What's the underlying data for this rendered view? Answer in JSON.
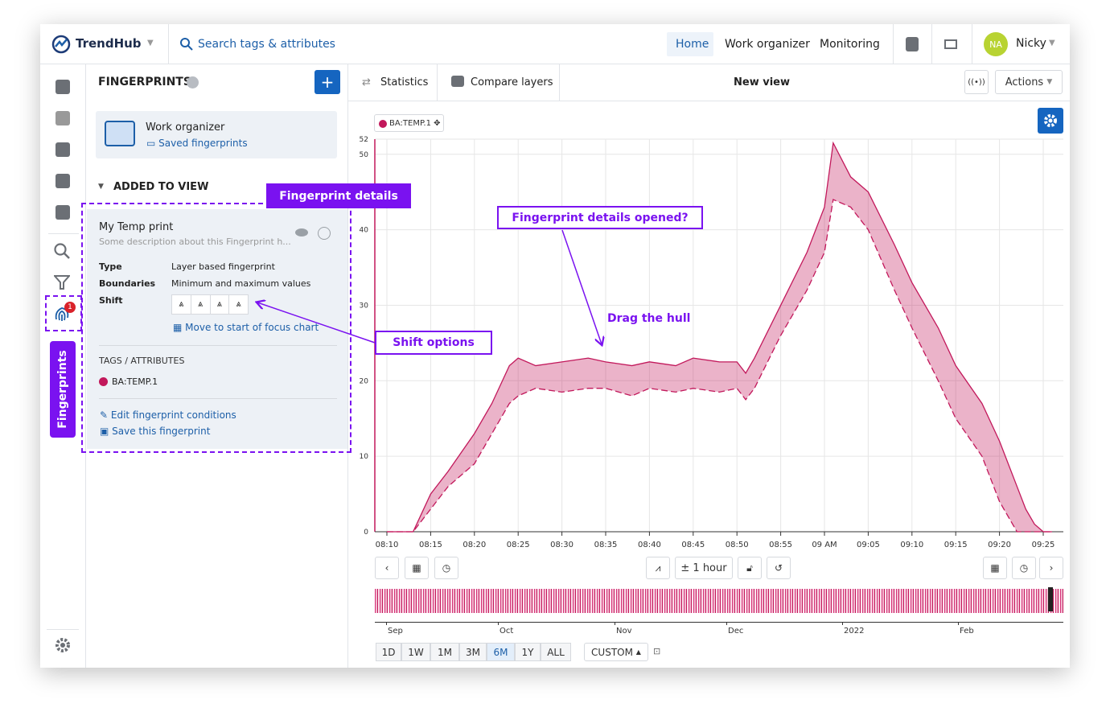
{
  "header": {
    "logo": "TrendHub",
    "search": "Search tags & attributes",
    "nav": [
      "Home",
      "Work organizer",
      "Monitoring"
    ],
    "avatar": "NA",
    "user": "Nicky"
  },
  "sidebar": {
    "tab": "Fingerprints",
    "badge": 1
  },
  "panel": {
    "title": "FINGERPRINTS",
    "folder_title": "Work organizer",
    "folder_link": "Saved fingerprints",
    "section": "ADDED TO VIEW",
    "card": {
      "name": "My Temp print",
      "description": "Some description about this Fingerprint h...",
      "type_label": "Type",
      "type": "Layer based fingerprint",
      "boundaries_label": "Boundaries",
      "boundaries": "Minimum and maximum values",
      "shift_label": "Shift",
      "move": "Move to start of focus chart",
      "tags_title": "TAGS / ATTRIBUTES",
      "tag": "BA:TEMP.1",
      "edit": "Edit fingerprint conditions",
      "save": "Save this fingerprint"
    }
  },
  "toolbar": {
    "statistics": "Statistics",
    "compare": "Compare layers",
    "view": "New view",
    "actions": "Actions"
  },
  "annotations": {
    "details": "Fingerprint details",
    "opened": "Fingerprint details opened?",
    "drag": "Drag the hull",
    "shift": "Shift options"
  },
  "chart_data": {
    "type": "hull",
    "x": [
      "08:10",
      "08:13",
      "08:15",
      "08:17",
      "08:20",
      "08:22",
      "08:24",
      "08:25",
      "08:27",
      "08:30",
      "08:33",
      "08:35",
      "08:38",
      "08:40",
      "08:43",
      "08:45",
      "08:48",
      "08:50",
      "08:51",
      "08:52",
      "08:55",
      "08:58",
      "09:00",
      "09:01",
      "09:03",
      "09:05",
      "09:08",
      "09:10",
      "09:13",
      "09:15",
      "09:18",
      "09:20",
      "09:22",
      "09:23",
      "09:24",
      "09:25",
      "09:26"
    ],
    "series": [
      {
        "name": "BA:TEMP.1",
        "color": "#c2185b",
        "upper": [
          0,
          0,
          5,
          8,
          13,
          17,
          22,
          23,
          22,
          22.5,
          23,
          22.5,
          22,
          22.5,
          22,
          23,
          22.5,
          22.5,
          21,
          23,
          30,
          37,
          43,
          51.5,
          47,
          45,
          38,
          33,
          27,
          22,
          17,
          12,
          6,
          3,
          1,
          0,
          0
        ],
        "lower": [
          0,
          0,
          3,
          6,
          9,
          13,
          17,
          18,
          19,
          18.5,
          19,
          19,
          18,
          19,
          18.5,
          19,
          18.5,
          19,
          17.5,
          19,
          26,
          32,
          37,
          44,
          43,
          40,
          32,
          27,
          20,
          15,
          10,
          4,
          0,
          0,
          0,
          0,
          0
        ]
      }
    ],
    "ylim": [
      0,
      52
    ],
    "yticks": [
      0,
      10,
      20,
      30,
      40,
      50,
      52
    ],
    "xticks": [
      "08:10",
      "08:15",
      "08:20",
      "08:25",
      "08:30",
      "08:35",
      "08:40",
      "08:45",
      "08:50",
      "08:55",
      {
        "value": "09:00",
        "label": "09 AM"
      },
      "09:05",
      "09:10",
      "09:15",
      "09:20",
      "09:25"
    ],
    "grid": true
  },
  "controls": {
    "zoom": "± 1 hour",
    "navigator": [
      "Sep",
      "Oct",
      "Nov",
      "Dec",
      "2022",
      "Feb"
    ],
    "ranges": [
      "1D",
      "1W",
      "1M",
      "3M",
      "6M",
      "1Y",
      "ALL"
    ],
    "active_range": "6M",
    "custom": "CUSTOM"
  }
}
